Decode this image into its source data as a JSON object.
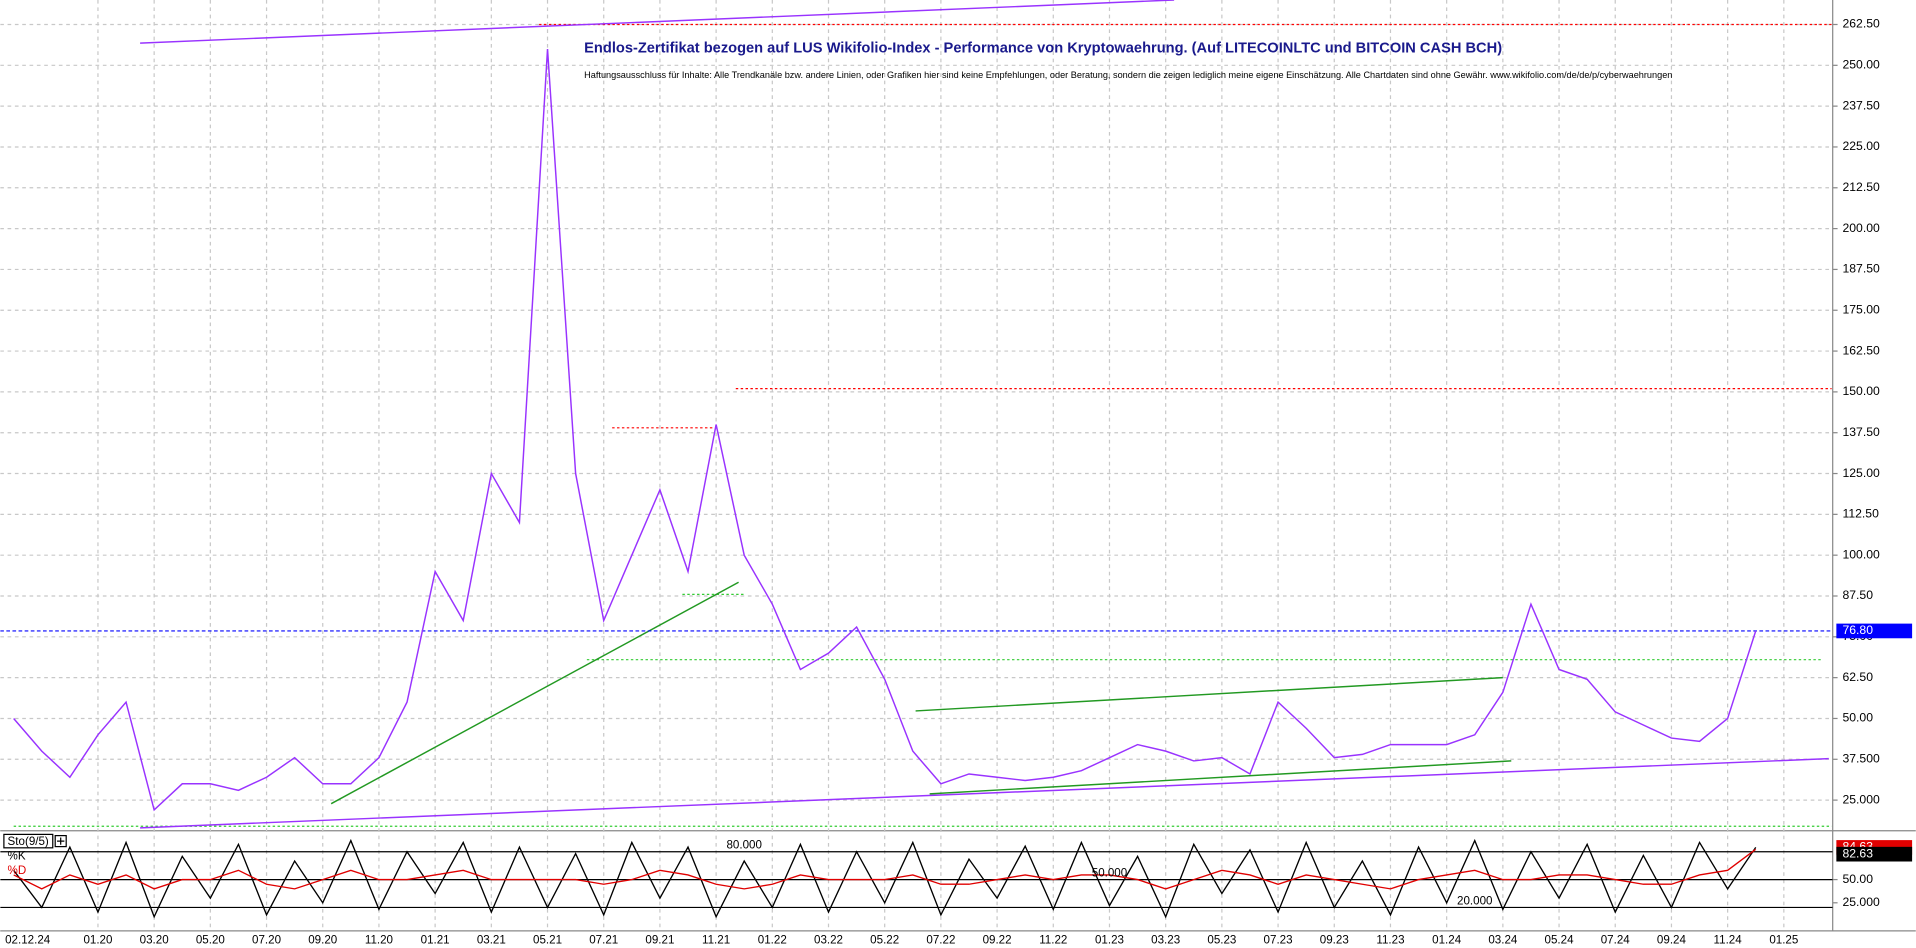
{
  "chart_data": [
    {
      "type": "line",
      "title": "Endlos-Zertifikat bezogen auf LUS Wikifolio-Index - Performance von Kryptowaehrung. (Auf LITECOINLTC und BITCOIN CASH BCH)",
      "subtitle": "Haftungsausschluss für Inhalte: Alle Trendkanäle bzw. andere Linien, oder Grafiken hier sind keine Empfehlungen, oder Beratung, sondern die zeigen lediglich meine eigene Einschätzung. Alle Chartdaten sind ohne Gewähr.  www.wikifolio.com/de/de/p/cyberwaehrungen",
      "date_label": "02.12.24",
      "categories": [
        null,
        null,
        null,
        "01.20",
        null,
        "03.20",
        null,
        "05.20",
        null,
        "07.20",
        null,
        "09.20",
        null,
        "11.20",
        null,
        "01.21",
        null,
        "03.21",
        null,
        "05.21",
        null,
        "07.21",
        null,
        "09.21",
        null,
        "11.21",
        null,
        "01.22",
        null,
        "03.22",
        null,
        "05.22",
        null,
        "07.22",
        null,
        "09.22",
        null,
        "11.22",
        null,
        "01.23",
        null,
        "03.23",
        null,
        "05.23",
        null,
        "07.23",
        null,
        "09.23",
        null,
        "11.23",
        null,
        "01.24",
        null,
        "03.24",
        null,
        "05.24",
        null,
        "07.24",
        null,
        "09.24",
        null,
        "11.24",
        null,
        "01.25"
      ],
      "values": [
        50,
        40,
        32,
        45,
        55,
        22,
        30,
        30,
        28,
        32,
        38,
        30,
        30,
        38,
        55,
        95,
        80,
        125,
        110,
        255,
        125,
        80,
        100,
        120,
        95,
        140,
        100,
        85,
        65,
        70,
        78,
        62,
        40,
        30,
        33,
        32,
        31,
        32,
        34,
        38,
        42,
        40,
        37,
        38,
        33,
        55,
        47,
        38,
        39,
        42,
        42,
        42,
        45,
        58,
        85,
        65,
        62,
        52,
        48,
        44,
        43,
        50,
        76.8,
        null
      ],
      "color": "#9933ff",
      "ylim": [
        16,
        270
      ],
      "yticks": [
        {
          "value": 25,
          "label": "25.000"
        },
        {
          "value": 37.5,
          "label": "37.500"
        },
        {
          "value": 50,
          "label": "50.00"
        },
        {
          "value": 62.5,
          "label": "62.50"
        },
        {
          "value": 75,
          "label": "75.00"
        },
        {
          "value": 87.5,
          "label": "87.50"
        },
        {
          "value": 100,
          "label": "100.00"
        },
        {
          "value": 112.5,
          "label": "112.50"
        },
        {
          "value": 125,
          "label": "125.00"
        },
        {
          "value": 137.5,
          "label": "137.50"
        },
        {
          "value": 150,
          "label": "150.00"
        },
        {
          "value": 162.5,
          "label": "162.50"
        },
        {
          "value": 175,
          "label": "175.00"
        },
        {
          "value": 187.5,
          "label": "187.50"
        },
        {
          "value": 200,
          "label": "200.00"
        },
        {
          "value": 212.5,
          "label": "212.50"
        },
        {
          "value": 225,
          "label": "225.00"
        },
        {
          "value": 237.5,
          "label": "237.50"
        },
        {
          "value": 250,
          "label": "250.00"
        },
        {
          "value": 262.5,
          "label": "262.50"
        }
      ],
      "grid": true,
      "price_marker": {
        "value": 76.8,
        "label": "76.80",
        "color": "#0000ff"
      },
      "levels": [
        {
          "value": 262.5,
          "from": 18.7,
          "to": 64.7,
          "color": "#ff0000"
        },
        {
          "value": 151,
          "from": 25.7,
          "to": 64.7,
          "color": "#ff0000"
        },
        {
          "value": 139,
          "from": 21.3,
          "to": 24.9,
          "color": "#ff0000"
        },
        {
          "value": 68,
          "from": 20.4,
          "to": 64.4,
          "color": "#33cc33"
        },
        {
          "value": 88,
          "from": 23.8,
          "to": 26,
          "color": "#33cc33"
        },
        {
          "value": 17,
          "from": 0,
          "to": 64.7,
          "color": "#33cc33"
        }
      ],
      "trendlines": [
        {
          "from": [
            4.5,
            256.8
          ],
          "to": [
            41.3,
            270
          ],
          "color": "#9933ff"
        },
        {
          "from": [
            4.5,
            16.5
          ],
          "to": [
            64.6,
            37.7
          ],
          "color": "#9933ff"
        },
        {
          "from": [
            11.3,
            23.9
          ],
          "to": [
            25.8,
            91.7
          ],
          "color": "#229922"
        },
        {
          "from": [
            32.1,
            52.3
          ],
          "to": [
            53,
            62.5
          ],
          "color": "#229922"
        },
        {
          "from": [
            32.6,
            26.9
          ],
          "to": [
            53.3,
            37
          ],
          "color": "#229922"
        }
      ]
    },
    {
      "type": "stochastic",
      "title": "Sto(9/5)",
      "series": [
        {
          "name": "%K",
          "color": "#000000",
          "values": [
            60,
            20,
            85,
            15,
            90,
            10,
            75,
            30,
            88,
            12,
            70,
            25,
            92,
            18,
            80,
            35,
            90,
            15,
            85,
            20,
            78,
            12,
            90,
            30,
            85,
            10,
            70,
            20,
            88,
            15,
            80,
            25,
            90,
            12,
            72,
            30,
            86,
            18,
            90,
            22,
            75,
            10,
            88,
            35,
            82,
            15,
            90,
            20,
            70,
            12,
            85,
            25,
            92,
            18,
            80,
            30,
            88,
            15,
            76,
            20,
            90,
            40,
            84.63,
            null
          ]
        },
        {
          "name": "%D",
          "color": "#e00000",
          "values": [
            55,
            40,
            55,
            45,
            55,
            40,
            50,
            50,
            60,
            45,
            40,
            50,
            60,
            50,
            50,
            55,
            60,
            50,
            50,
            50,
            50,
            45,
            50,
            60,
            55,
            45,
            40,
            45,
            55,
            50,
            50,
            50,
            55,
            45,
            45,
            50,
            55,
            50,
            55,
            55,
            50,
            40,
            50,
            60,
            55,
            45,
            55,
            50,
            45,
            40,
            50,
            55,
            60,
            50,
            50,
            55,
            55,
            50,
            45,
            45,
            55,
            60,
            82.63,
            null
          ]
        }
      ],
      "ylim": [
        0,
        100
      ],
      "yticks": [
        {
          "value": 25,
          "label": "25.000"
        },
        {
          "value": 50,
          "label": "50.00"
        }
      ],
      "levels": [
        {
          "value": 80,
          "label": "80.000",
          "at": 26
        },
        {
          "value": 50,
          "label": "50.000",
          "at": 39
        },
        {
          "value": 20,
          "label": "20.000",
          "at": 52
        }
      ]
    }
  ]
}
